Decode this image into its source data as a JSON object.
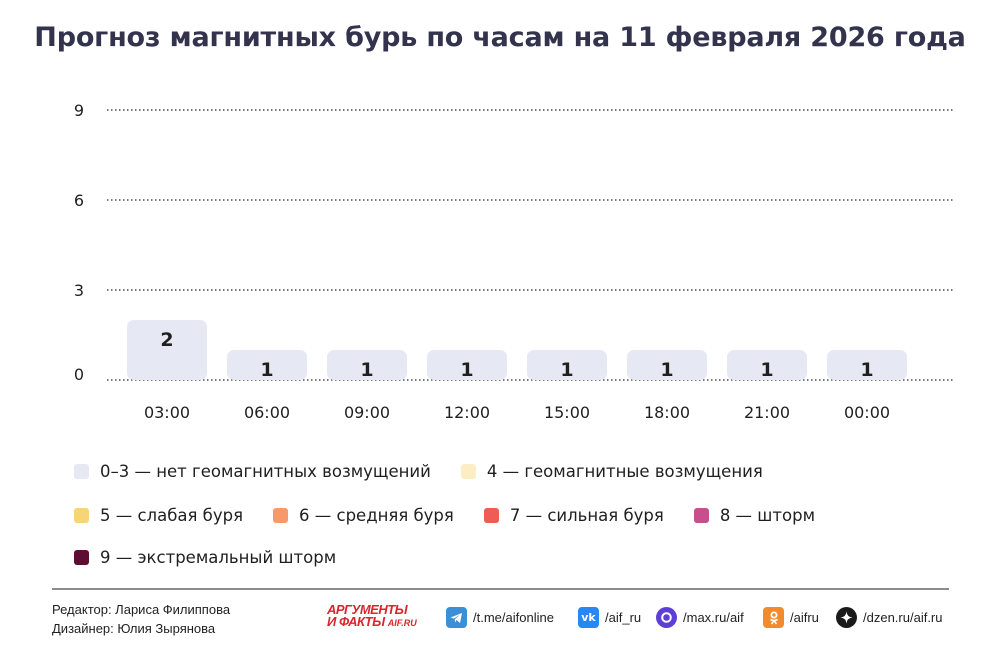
{
  "header": {
    "title": "Прогноз магнитных бурь по часам на 11 февраля 2026 года"
  },
  "chart_data": {
    "type": "bar",
    "title": "Прогноз магнитных бурь по часам на 11 февраля 2026 года",
    "categories": [
      "03:00",
      "06:00",
      "09:00",
      "12:00",
      "15:00",
      "18:00",
      "21:00",
      "00:00"
    ],
    "values": [
      2,
      1,
      1,
      1,
      1,
      1,
      1,
      1
    ],
    "ylim": [
      0,
      9
    ],
    "yticks": [
      0,
      3,
      6,
      9
    ],
    "grid": true,
    "bar_color": "#e6e9f4"
  },
  "legend": [
    {
      "label": "0–3 — нет геомагнитных возмущений",
      "color": "#e6e9f4"
    },
    {
      "label": "4 — геомагнитные возмущения",
      "color": "#fdedc4"
    },
    {
      "label": "5 — слабая буря",
      "color": "#f7d576"
    },
    {
      "label": "6 — средняя буря",
      "color": "#f59a6a"
    },
    {
      "label": "7 — сильная буря",
      "color": "#ef5b55"
    },
    {
      "label": "8 — шторм",
      "color": "#c94f8c"
    },
    {
      "label": "9 — экстремальный шторм",
      "color": "#5c0f32"
    }
  ],
  "footer": {
    "editor": "Редактор: Лариса Филиппова",
    "designer": "Дизайнер: Юлия Зырянова",
    "brand_top": "АРГУМЕНТЫ",
    "brand_bottom": "И ФАКТЫ",
    "brand_domain": "AIF.RU",
    "links": [
      {
        "icon": "telegram-icon",
        "text": "/t.me/aifonline",
        "color": "#3a8fd6"
      },
      {
        "icon": "vk-icon",
        "text": "/aif_ru",
        "color": "#2787f5"
      },
      {
        "icon": "max-icon",
        "text": "/max.ru/aif",
        "color": "#5b3fd6"
      },
      {
        "icon": "odnoklassniki-icon",
        "text": "/aifru",
        "color": "#f28a2e"
      },
      {
        "icon": "dzen-icon",
        "text": "/dzen.ru/aif.ru",
        "color": "#1a1a1a"
      }
    ]
  }
}
